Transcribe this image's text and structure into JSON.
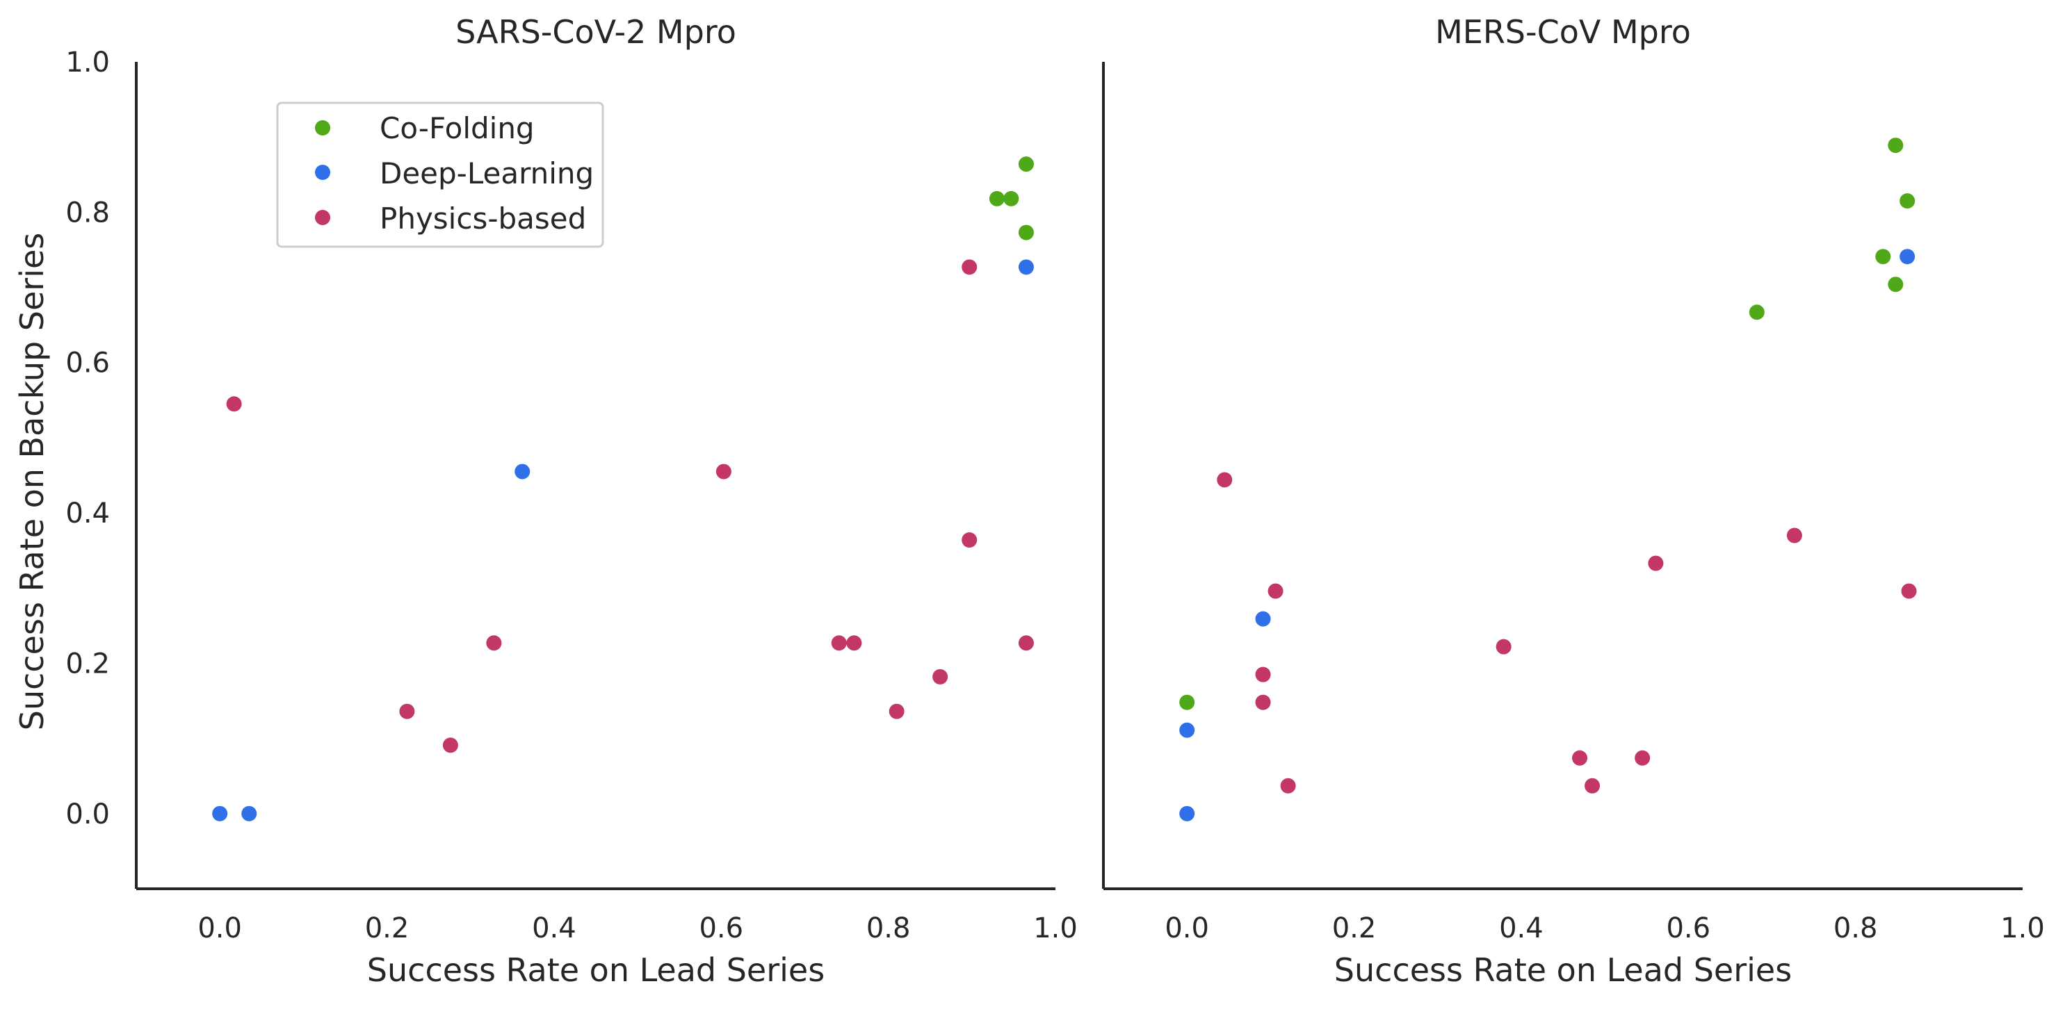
{
  "colors": {
    "co_folding": "#4fa817",
    "deep_learning": "#2f6fe8",
    "physics_based": "#c23764",
    "axis": "#262626",
    "legend_border": "#cccccc"
  },
  "chart_data": [
    {
      "type": "scatter",
      "title": "SARS-CoV-2 Mpro",
      "xlabel": "Success Rate on Lead Series",
      "ylabel": "Success Rate on Backup Series",
      "xlim": [
        -0.1,
        1.0
      ],
      "ylim": [
        -0.1,
        1.0
      ],
      "xticks": [
        "0.0",
        "0.2",
        "0.4",
        "0.6",
        "0.8",
        "1.0"
      ],
      "yticks": [
        "0.0",
        "0.2",
        "0.4",
        "0.6",
        "0.8",
        "1.0"
      ],
      "grid": false,
      "legend": {
        "position": "upper-left",
        "entries": [
          "Co-Folding",
          "Deep-Learning",
          "Physics-based"
        ]
      },
      "series": [
        {
          "name": "Co-Folding",
          "color_key": "co_folding",
          "points": [
            [
              0.965,
              0.864
            ],
            [
              0.93,
              0.818
            ],
            [
              0.947,
              0.818
            ],
            [
              0.965,
              0.773
            ]
          ]
        },
        {
          "name": "Deep-Learning",
          "color_key": "deep_learning",
          "points": [
            [
              0.0,
              0.0
            ],
            [
              0.035,
              0.0
            ],
            [
              0.362,
              0.455
            ],
            [
              0.965,
              0.727
            ]
          ]
        },
        {
          "name": "Physics-based",
          "color_key": "physics_based",
          "points": [
            [
              0.017,
              0.545
            ],
            [
              0.224,
              0.136
            ],
            [
              0.276,
              0.091
            ],
            [
              0.328,
              0.227
            ],
            [
              0.603,
              0.455
            ],
            [
              0.741,
              0.227
            ],
            [
              0.759,
              0.227
            ],
            [
              0.81,
              0.136
            ],
            [
              0.862,
              0.182
            ],
            [
              0.897,
              0.727
            ],
            [
              0.897,
              0.364
            ],
            [
              0.965,
              0.227
            ]
          ]
        }
      ]
    },
    {
      "type": "scatter",
      "title": "MERS-CoV Mpro",
      "xlabel": "Success Rate on Lead Series",
      "ylabel": "",
      "xlim": [
        -0.1,
        1.0
      ],
      "ylim": [
        -0.1,
        1.0
      ],
      "xticks": [
        "0.0",
        "0.2",
        "0.4",
        "0.6",
        "0.8",
        "1.0"
      ],
      "yticks": [],
      "grid": false,
      "series": [
        {
          "name": "Co-Folding",
          "color_key": "co_folding",
          "points": [
            [
              0.848,
              0.889
            ],
            [
              0.862,
              0.815
            ],
            [
              0.833,
              0.741
            ],
            [
              0.848,
              0.704
            ],
            [
              0.682,
              0.667
            ],
            [
              0.0,
              0.148
            ]
          ]
        },
        {
          "name": "Deep-Learning",
          "color_key": "deep_learning",
          "points": [
            [
              0.862,
              0.741
            ],
            [
              0.091,
              0.259
            ],
            [
              0.0,
              0.111
            ],
            [
              0.0,
              0.0
            ]
          ]
        },
        {
          "name": "Physics-based",
          "color_key": "physics_based",
          "points": [
            [
              0.045,
              0.444
            ],
            [
              0.106,
              0.296
            ],
            [
              0.091,
              0.185
            ],
            [
              0.091,
              0.148
            ],
            [
              0.121,
              0.037
            ],
            [
              0.379,
              0.222
            ],
            [
              0.47,
              0.074
            ],
            [
              0.485,
              0.037
            ],
            [
              0.545,
              0.074
            ],
            [
              0.561,
              0.333
            ],
            [
              0.727,
              0.37
            ],
            [
              0.864,
              0.296
            ]
          ]
        }
      ]
    }
  ]
}
